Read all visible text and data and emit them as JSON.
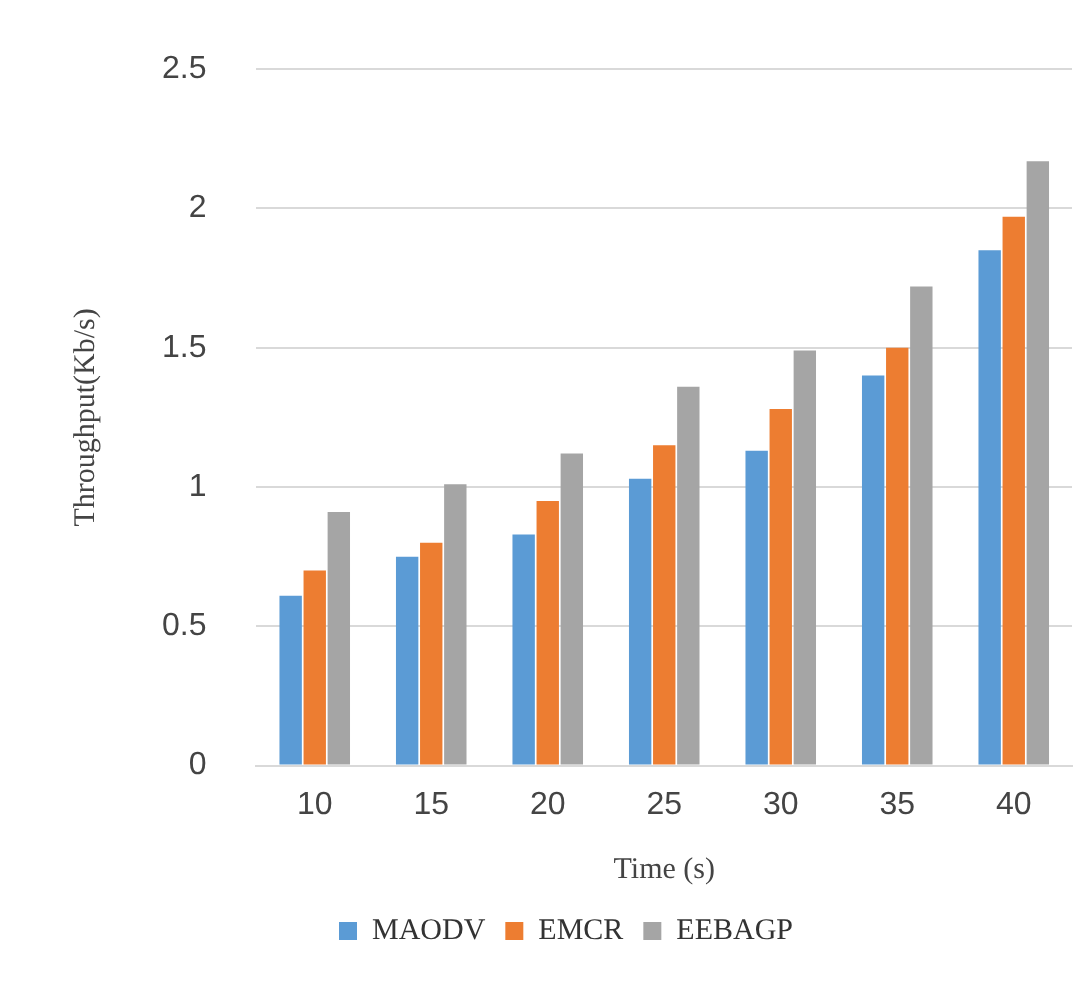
{
  "chart_data": {
    "type": "bar",
    "xlabel": "Time (s)",
    "ylabel": "Throughput(Kb/s)",
    "categories": [
      "10",
      "15",
      "20",
      "25",
      "30",
      "35",
      "40"
    ],
    "series": [
      {
        "name": "MAODV",
        "color": "#5b9bd5",
        "values": [
          0.61,
          0.75,
          0.83,
          1.03,
          1.13,
          1.4,
          1.85
        ]
      },
      {
        "name": "EMCR",
        "color": "#ed7d31",
        "values": [
          0.7,
          0.8,
          0.95,
          1.15,
          1.28,
          1.5,
          1.97
        ]
      },
      {
        "name": "EEBAGP",
        "color": "#a5a5a5",
        "values": [
          0.91,
          1.01,
          1.12,
          1.36,
          1.49,
          1.72,
          2.17
        ]
      }
    ],
    "ylim": [
      0,
      2.5
    ],
    "yticks": [
      0,
      0.5,
      1,
      1.5,
      2,
      2.5
    ],
    "grid": "y",
    "legend": "bottom"
  }
}
